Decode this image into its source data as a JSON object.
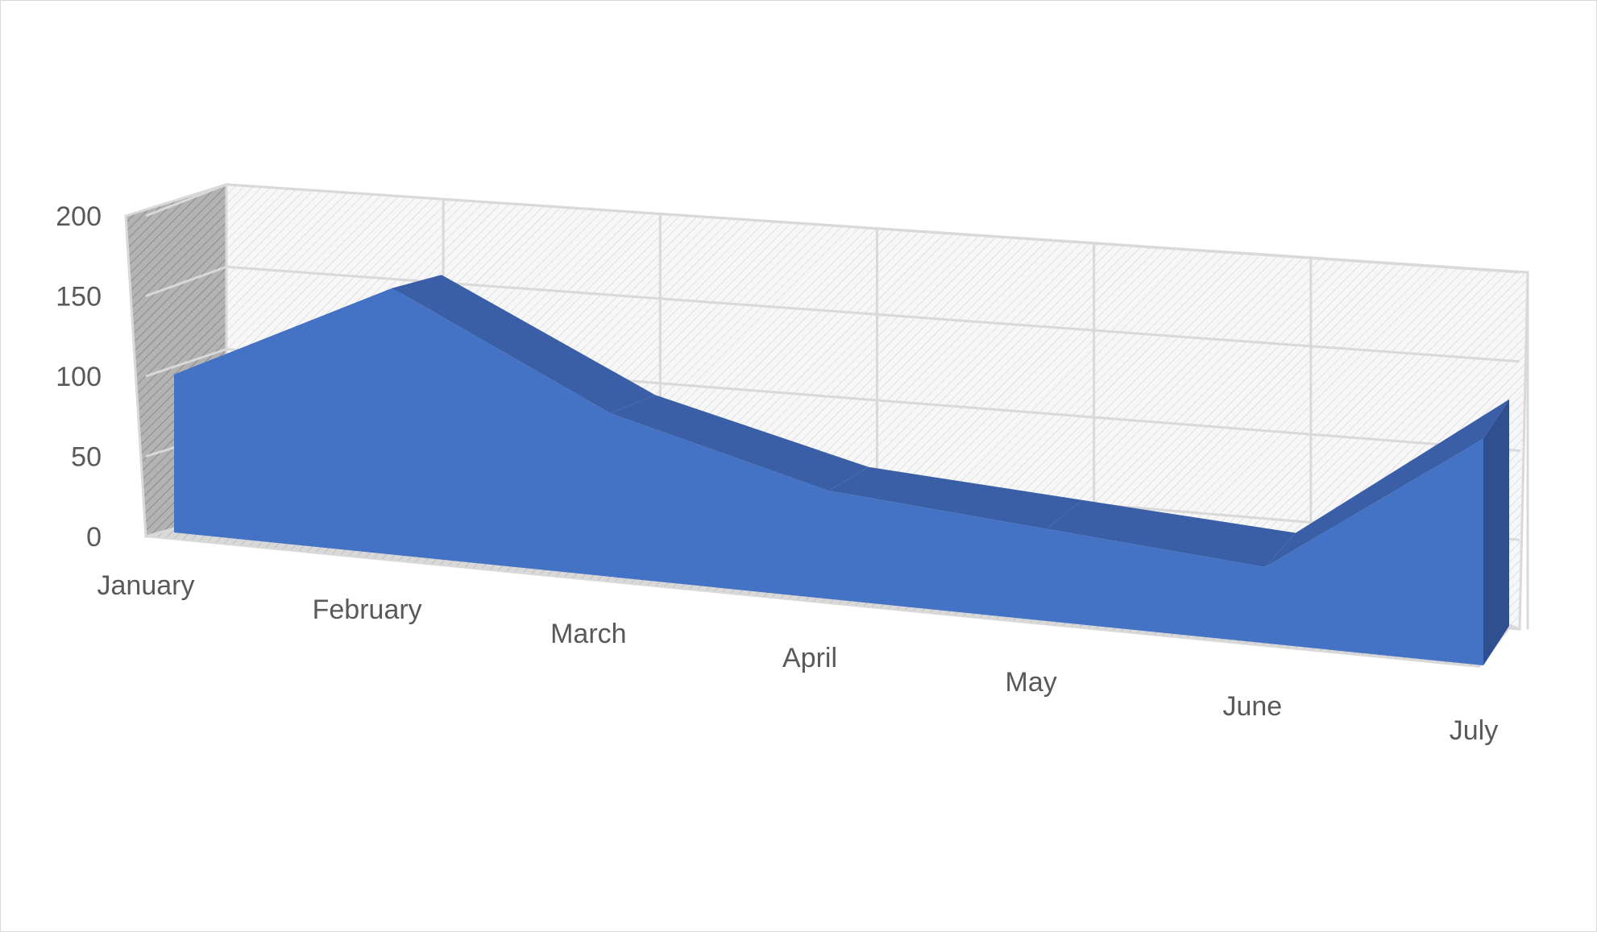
{
  "chart_data": {
    "type": "area",
    "title": "",
    "xlabel": "",
    "ylabel": "",
    "categories": [
      "January",
      "February",
      "March",
      "April",
      "May",
      "June",
      "July"
    ],
    "series": [
      {
        "values": [
          100,
          170,
          105,
          70,
          60,
          50,
          150
        ]
      }
    ],
    "ylim": [
      0,
      200
    ],
    "yticks": [
      "0",
      "50",
      "100",
      "150",
      "200"
    ],
    "grid": true,
    "legend": "none",
    "style": "3d",
    "colors": {
      "area_front": "#4472C4",
      "area_top": "#3A5FA6",
      "area_side": "#2F4F8F",
      "wall": "#a6a6a6",
      "grid": "#d9d9d9",
      "text": "#595959"
    }
  }
}
